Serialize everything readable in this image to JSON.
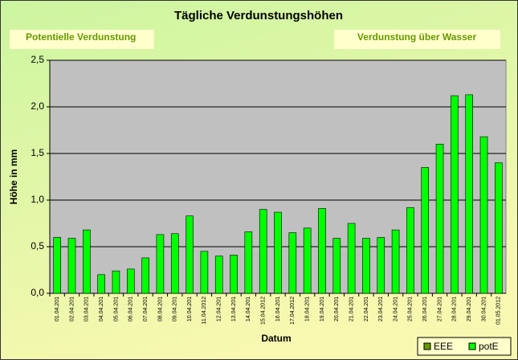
{
  "chart_data": {
    "type": "bar",
    "title": "Tägliche Verdunstungshöhen",
    "annotations": [
      "Potentielle Verdunstung",
      "Verdunstung über Wasser"
    ],
    "y_label": "Höhe in mm",
    "x_label": "Datum",
    "categories": [
      "01.04.201",
      "02.04.201",
      "03.04.201",
      "04.04.201",
      "05.04.201",
      "06.04.201",
      "07.04.201",
      "08.04.201",
      "09.04.201",
      "10.04.201",
      "11.04.2012",
      "12.04.201",
      "13.04.201",
      "14.04.201",
      "15.04.2012",
      "16.04.201",
      "17.04.2012",
      "18.04.201",
      "19.04.201",
      "20.04.201",
      "21.04.201",
      "22.04.201",
      "23.04.201",
      "24.04.201",
      "25.04.201",
      "26.04.201",
      "27.04.201",
      "28.04.201",
      "29.04.201",
      "30.04.201",
      "01.05.2012"
    ],
    "series": [
      {
        "name": "EEE",
        "color": "#669900",
        "values": [
          null,
          null,
          null,
          null,
          null,
          null,
          null,
          null,
          null,
          null,
          null,
          null,
          null,
          null,
          null,
          null,
          null,
          null,
          null,
          null,
          null,
          null,
          null,
          null,
          null,
          null,
          null,
          null,
          null,
          null,
          null
        ]
      },
      {
        "name": "potE",
        "color": "#00ff00",
        "values": [
          0.6,
          0.59,
          0.68,
          0.2,
          0.24,
          0.26,
          0.38,
          0.63,
          0.64,
          0.83,
          0.45,
          0.4,
          0.41,
          0.66,
          0.9,
          0.87,
          0.65,
          0.7,
          0.91,
          0.59,
          0.75,
          0.59,
          0.6,
          0.68,
          0.92,
          1.35,
          1.6,
          2.12,
          2.13,
          1.68,
          1.4
        ]
      }
    ],
    "ylim": [
      0,
      2.5
    ],
    "yticks": [
      {
        "value": 0,
        "label": "0,0"
      },
      {
        "value": 0.5,
        "label": "0,5"
      },
      {
        "value": 1,
        "label": "1,0"
      },
      {
        "value": 1.5,
        "label": "1,5"
      },
      {
        "value": 2,
        "label": "2,0"
      },
      {
        "value": 2.5,
        "label": "2,5"
      }
    ],
    "grid": true,
    "legend": "bottom-right"
  }
}
